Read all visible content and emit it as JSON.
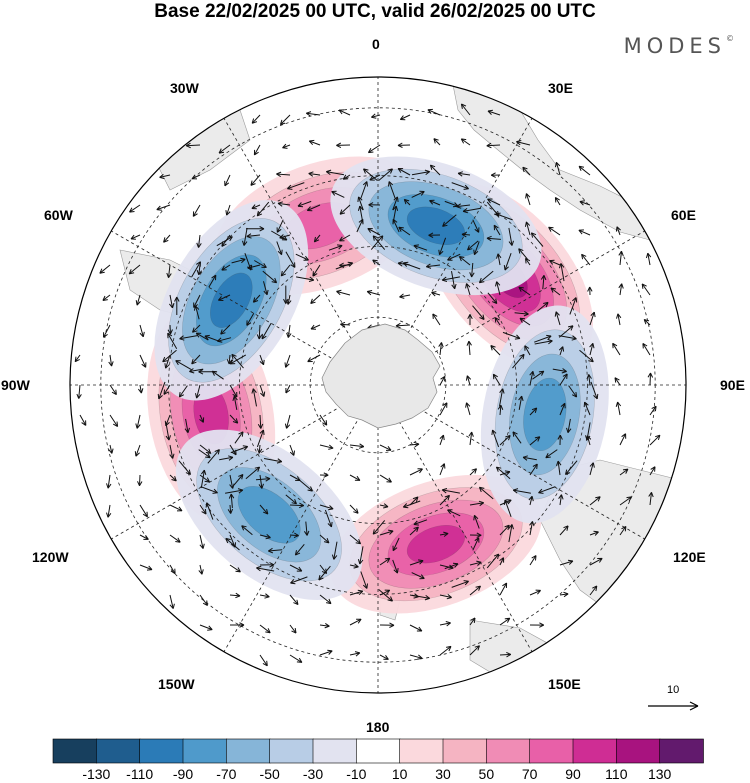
{
  "title": "Base 22/02/2025 00 UTC, valid 26/02/2025 00 UTC",
  "brand": {
    "text": "MODES",
    "mark": "©"
  },
  "map": {
    "projection": "south-polar-stereographic",
    "lon_labels": {
      "lon_0": "0",
      "lon_30e": "30E",
      "lon_60e": "60E",
      "lon_90e": "90E",
      "lon_120e": "120E",
      "lon_150e": "150E",
      "lon_180": "180",
      "lon_150w": "150W",
      "lon_120w": "120W",
      "lon_90w": "90W",
      "lon_60w": "60W",
      "lon_30w": "30W"
    },
    "vector_reference": {
      "label": "10",
      "icon": "arrow-right-icon"
    },
    "field_centers": [
      {
        "sign": "positive",
        "lon": 50,
        "value": 120
      },
      {
        "sign": "positive",
        "lon": 160,
        "value": 115
      },
      {
        "sign": "positive",
        "lon": -100,
        "value": 110
      },
      {
        "sign": "positive",
        "lon": -20,
        "value": 80
      },
      {
        "sign": "negative",
        "lon": 20,
        "value": -100
      },
      {
        "sign": "negative",
        "lon": 100,
        "value": -90
      },
      {
        "sign": "negative",
        "lon": -140,
        "value": -90
      },
      {
        "sign": "negative",
        "lon": -60,
        "value": -110
      }
    ]
  },
  "colorbar": {
    "colors": [
      "#173f5e",
      "#1f5d8e",
      "#2b7bb7",
      "#4f9acb",
      "#86b5d8",
      "#b8cde6",
      "#e2e3f0",
      "#ffffff",
      "#fbd9dd",
      "#f5b4c2",
      "#f08cb5",
      "#e860a8",
      "#cf2d94",
      "#a8137f",
      "#621a6d"
    ],
    "tick_labels": [
      "-130",
      "-110",
      "-90",
      "-70",
      "-50",
      "-30",
      "-10",
      "10",
      "30",
      "50",
      "70",
      "90",
      "110",
      "130"
    ]
  }
}
